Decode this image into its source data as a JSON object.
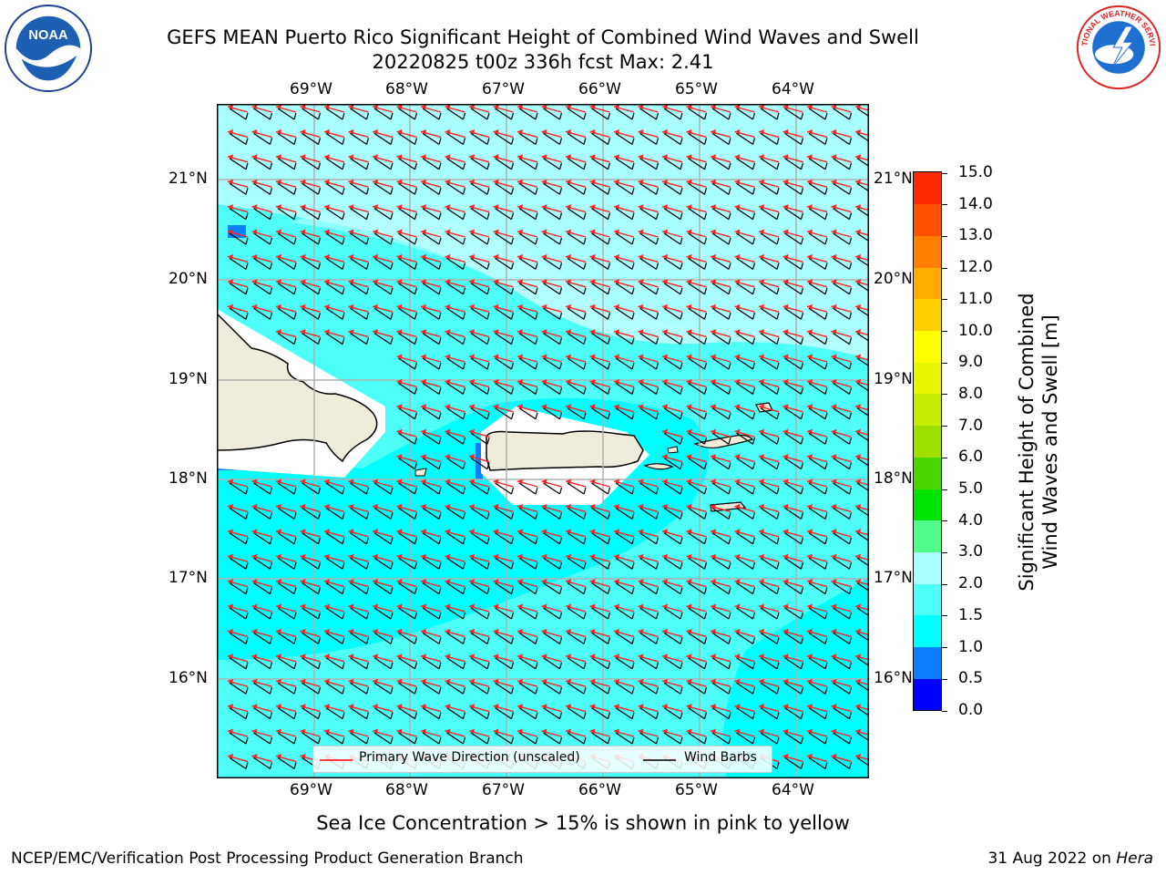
{
  "title": {
    "line1": "GEFS MEAN Puerto Rico Significant Height of Combined Wind Waves and Swell",
    "line2": "20220825 t00z 336h fcst   Max: 2.41"
  },
  "logos": {
    "left": {
      "name": "noaa-logo",
      "text": "NOAA"
    },
    "right": {
      "name": "nws-logo",
      "text": "NATIONAL WEATHER SERVICE"
    }
  },
  "map": {
    "lon_labels": [
      "69°W",
      "68°W",
      "67°W",
      "66°W",
      "65°W",
      "64°W"
    ],
    "lat_labels": [
      "21°N",
      "20°N",
      "19°N",
      "18°N",
      "17°N",
      "16°N"
    ]
  },
  "colorbar": {
    "title_line1": "Significant Height of Combined",
    "title_line2": "Wind Waves and Swell [m]",
    "ticks": [
      "0.0",
      "0.5",
      "1.0",
      "1.5",
      "2.0",
      "3.0",
      "4.0",
      "5.0",
      "6.0",
      "7.0",
      "8.0",
      "9.0",
      "10.0",
      "11.0",
      "12.0",
      "13.0",
      "14.0",
      "15.0"
    ],
    "colors": [
      "#0000ff",
      "#0a7fff",
      "#00ffff",
      "#4dfff6",
      "#a8fffd",
      "#4ffc8c",
      "#00e300",
      "#4bd600",
      "#9fdf00",
      "#c4ec00",
      "#e6f700",
      "#ffff00",
      "#ffd000",
      "#ffab00",
      "#ff8000",
      "#ff5200",
      "#ff2a00"
    ]
  },
  "legend": {
    "primary_wave": "Primary Wave Direction (unscaled)",
    "wind_barbs": "Wind Barbs"
  },
  "note": "Sea Ice Concentration > 15% is shown in pink to yellow",
  "footer": {
    "left": "NCEP/EMC/Verification Post Processing Product Generation Branch",
    "right_prefix": "31 Aug 2022 on ",
    "right_host": "Hera"
  }
}
